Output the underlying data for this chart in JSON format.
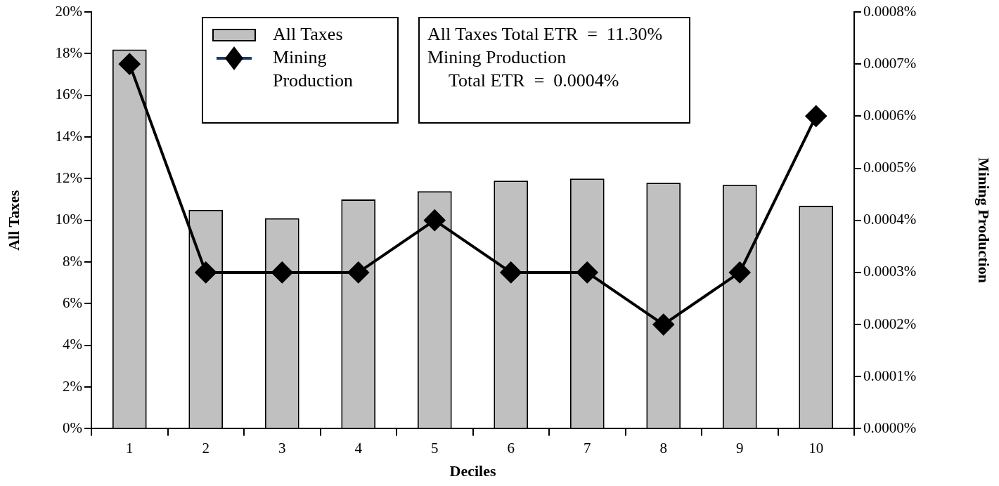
{
  "chart_data": {
    "type": "bar",
    "xlabel": "Deciles",
    "ylabel": "All Taxes",
    "y2label": "Mining Production",
    "categories": [
      "1",
      "2",
      "3",
      "4",
      "5",
      "6",
      "7",
      "8",
      "9",
      "10"
    ],
    "series": [
      {
        "name": "All Taxes",
        "color": "#c0c0c0",
        "values": [
          18.2,
          10.5,
          10.1,
          11.0,
          11.4,
          11.9,
          12.0,
          11.8,
          11.7,
          10.7
        ]
      },
      {
        "name": "Mining Production",
        "type": "line",
        "axis": "y2",
        "color": "#000000",
        "marker": "diamond",
        "values": [
          0.0007,
          0.0003,
          0.0003,
          0.0003,
          0.0004,
          0.0003,
          0.0003,
          0.0002,
          0.0003,
          0.0006
        ]
      }
    ],
    "ylim": [
      0,
      20
    ],
    "yticks": [
      {
        "value": 0,
        "label": "0%"
      },
      {
        "value": 2,
        "label": "2%"
      },
      {
        "value": 4,
        "label": "4%"
      },
      {
        "value": 6,
        "label": "6%"
      },
      {
        "value": 8,
        "label": "8%"
      },
      {
        "value": 10,
        "label": "10%"
      },
      {
        "value": 12,
        "label": "12%"
      },
      {
        "value": 14,
        "label": "14%"
      },
      {
        "value": 16,
        "label": "16%"
      },
      {
        "value": 18,
        "label": "18%"
      },
      {
        "value": 20,
        "label": "20%"
      }
    ],
    "y2lim": [
      0,
      0.0008
    ],
    "y2ticks": [
      {
        "value": 0,
        "label": "0.0000%"
      },
      {
        "value": 0.0001,
        "label": "0.0001%"
      },
      {
        "value": 0.0002,
        "label": "0.0002%"
      },
      {
        "value": 0.0003,
        "label": "0.0003%"
      },
      {
        "value": 0.0004,
        "label": "0.0004%"
      },
      {
        "value": 0.0005,
        "label": "0.0005%"
      },
      {
        "value": 0.0006,
        "label": "0.0006%"
      },
      {
        "value": 0.0007,
        "label": "0.0007%"
      },
      {
        "value": 0.0008,
        "label": "0.0008%"
      }
    ],
    "annotations": [
      "All Taxes Total ETR  =  11.30%",
      "Mining Production",
      "Total ETR  =  0.0004%"
    ],
    "legend": "top left",
    "grid": false
  }
}
